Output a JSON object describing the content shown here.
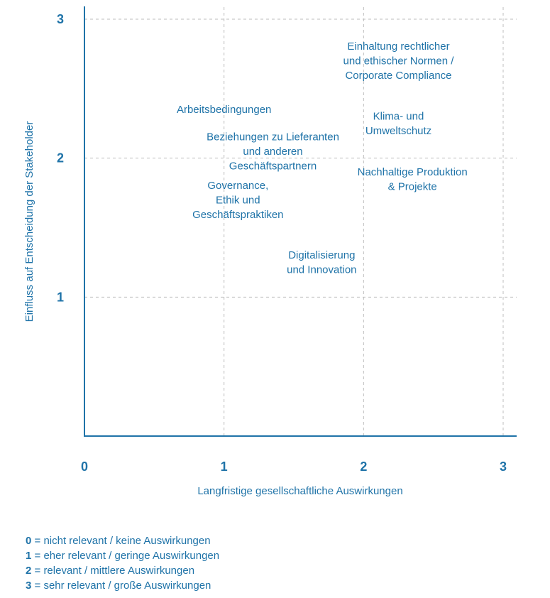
{
  "chart_data": {
    "type": "scatter",
    "title": "",
    "xlabel": "Langfristige gesellschaftliche Auswirkungen",
    "ylabel": "Einfluss auf Entscheidung der Stakeholder",
    "xlim": [
      0,
      3
    ],
    "ylim": [
      0,
      3
    ],
    "x_ticks": [
      "0",
      "1",
      "2",
      "3"
    ],
    "y_ticks": [
      "1",
      "2",
      "3"
    ],
    "grid": true,
    "points": [
      {
        "label": [
          "Einhaltung rechtlicher",
          "und ethischer Normen /",
          "Corporate Compliance"
        ],
        "x": 2.25,
        "y": 2.7
      },
      {
        "label": [
          "Arbeitsbedingungen"
        ],
        "x": 1.0,
        "y": 2.35
      },
      {
        "label": [
          "Klima- und",
          "Umweltschutz"
        ],
        "x": 2.25,
        "y": 2.25
      },
      {
        "label": [
          "Beziehungen zu Lieferanten",
          "und anderen",
          "Geschäftspartnern"
        ],
        "x": 1.35,
        "y": 2.05
      },
      {
        "label": [
          "Nachhaltige Produktion",
          "& Projekte"
        ],
        "x": 2.35,
        "y": 1.85
      },
      {
        "label": [
          "Governance,",
          "Ethik und",
          "Geschäftspraktiken"
        ],
        "x": 1.1,
        "y": 1.7
      },
      {
        "label": [
          "Digitalisierung",
          "und Innovation"
        ],
        "x": 1.7,
        "y": 1.25
      }
    ],
    "colors": {
      "text": "#1f73a8",
      "axis": "#1f73a8",
      "grid": "#bdbdbd"
    }
  },
  "legend": [
    {
      "key": "0",
      "text": " = nicht relevant / keine Auswirkungen"
    },
    {
      "key": "1",
      "text": " = eher relevant / geringe Auswirkungen"
    },
    {
      "key": "2",
      "text": " = relevant / mittlere Auswirkungen"
    },
    {
      "key": "3",
      "text": " = sehr relevant / große Auswirkungen"
    }
  ]
}
